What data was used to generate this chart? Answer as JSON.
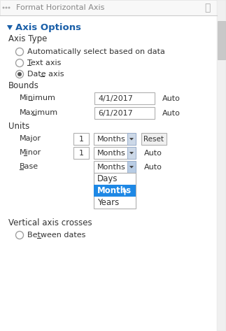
{
  "bg_color": "#ffffff",
  "header_text": "Format Horizontal Axis",
  "section_title": "Axis Options",
  "section_title_color": "#1a5fa8",
  "axis_type_label": "Axis Type",
  "radio_options": [
    "Automatically select based on data",
    "Text axis",
    "Date axis"
  ],
  "radio_selected": 2,
  "bounds_label": "Bounds",
  "minimum_label": "Minimum",
  "minimum_value": "4/1/2017",
  "maximum_label": "Maximum",
  "maximum_value": "6/1/2017",
  "auto_label": "Auto",
  "units_label": "Units",
  "major_label": "Major",
  "major_value": "1",
  "major_dropdown": "Months",
  "minor_label": "Minor",
  "minor_value": "1",
  "minor_dropdown": "Months",
  "base_label": "Base",
  "base_dropdown": "Months",
  "reset_label": "Reset",
  "vertical_axis_label": "Vertical axis crosses",
  "between_dates_label": "Between dates",
  "dropdown_items": [
    "Days",
    "Months",
    "Years"
  ],
  "dropdown_selected": 1,
  "dropdown_selected_color": "#1e88e5",
  "dropdown_selected_text_color": "#ffffff",
  "dropdown_bg": "#ffffff",
  "input_border": "#b0b0b0",
  "input_bg": "#ffffff",
  "text_color": "#333333",
  "header_text_color": "#888888",
  "scrollbar_thumb": "#c8c8c8",
  "scrollbar_track": "#f0f0f0",
  "dd_arrow_bg": "#b8cce4",
  "dd_arrow_bg2": "#cdd9e8",
  "separator_color": "#e0e0e0"
}
